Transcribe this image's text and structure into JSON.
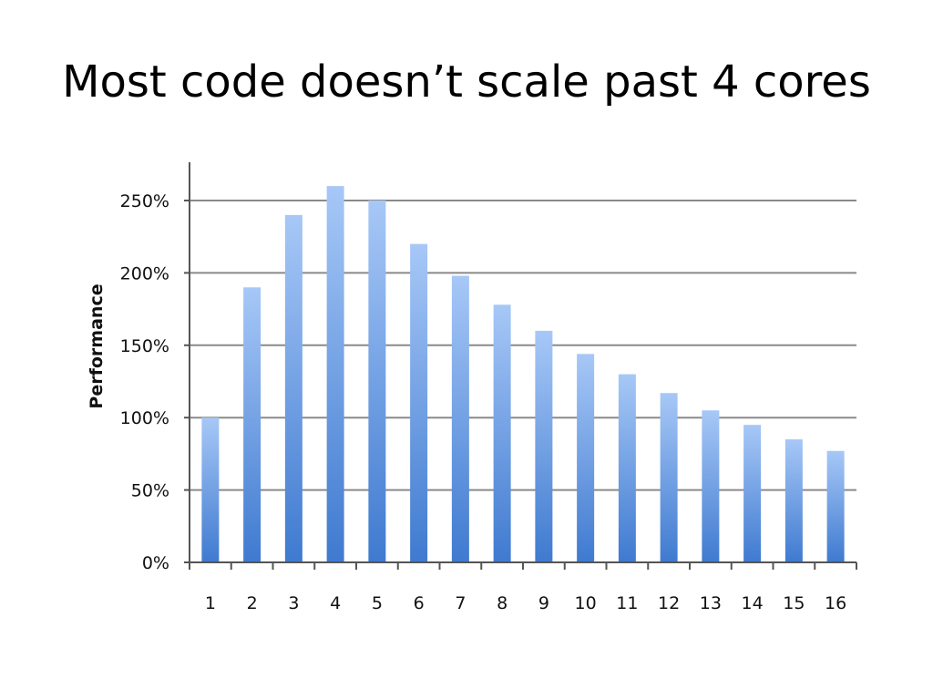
{
  "slide": {
    "title": "Most code doesn’t scale past 4 cores"
  },
  "colors": {
    "bar_top": "#a7c8f7",
    "bar_bottom": "#3f7ad0",
    "gridline": "#8a8a8a",
    "axis": "#555555"
  },
  "chart_data": {
    "type": "bar",
    "title": "",
    "xlabel": "",
    "ylabel": "Performance",
    "categories": [
      "1",
      "2",
      "3",
      "4",
      "5",
      "6",
      "7",
      "8",
      "9",
      "10",
      "11",
      "12",
      "13",
      "14",
      "15",
      "16"
    ],
    "values": [
      100,
      190,
      240,
      260,
      250,
      220,
      198,
      178,
      160,
      144,
      130,
      117,
      105,
      95,
      85,
      77
    ],
    "value_unit": "%",
    "ylim": [
      0,
      270
    ],
    "yticks": [
      "0%",
      "50%",
      "100%",
      "150%",
      "200%",
      "250%"
    ],
    "ytick_values": [
      0,
      50,
      100,
      150,
      200,
      250
    ],
    "grid": true,
    "legend": "none"
  }
}
